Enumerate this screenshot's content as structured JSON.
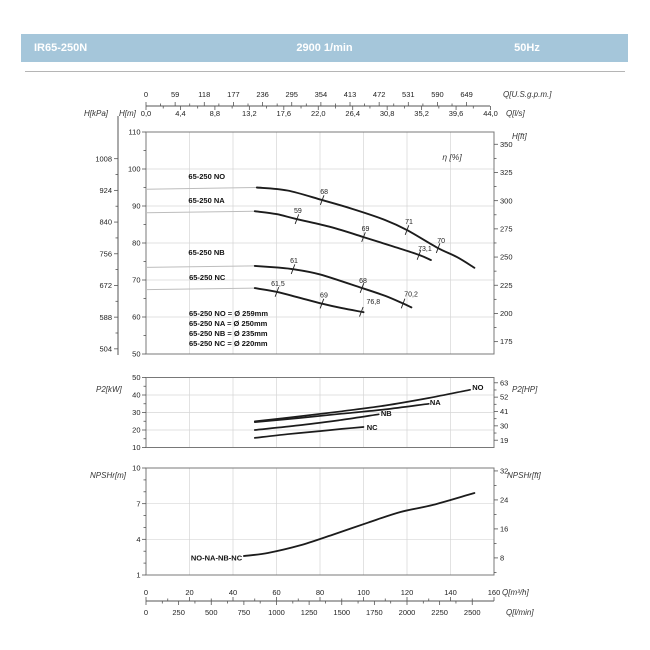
{
  "header": {
    "model": "IR65-250N",
    "speed": "2900 1/min",
    "frequency": "50Hz",
    "bar_color": "#a5c6da"
  },
  "chart_data": {
    "type": "line",
    "colors": {
      "curve": "#1c1c1c",
      "lead": "#bdbdbd",
      "grid": "#d6d6d6",
      "frame": "#787878",
      "axis": "#555555",
      "tick_text": "#222222",
      "unit_text": "#333333"
    },
    "flow_axes": {
      "gpm": {
        "label": "Q[U.S.g.p.m.]",
        "ticks": [
          0,
          59,
          118,
          177,
          236,
          295,
          354,
          413,
          472,
          531,
          590,
          649
        ]
      },
      "ls": {
        "label": "Q[l/s]",
        "tick_labels": [
          "0,0",
          "4,4",
          "8,8",
          "13,2",
          "17,6",
          "22,0",
          "26,4",
          "30,8",
          "35,2",
          "39,6",
          "44,0"
        ],
        "tick_values": [
          0,
          4.4,
          8.8,
          13.2,
          17.6,
          22,
          26.4,
          30.8,
          35.2,
          39.6,
          44
        ]
      },
      "m3h": {
        "label": "Q[m³/h]",
        "ticks": [
          0,
          20,
          40,
          60,
          80,
          100,
          120,
          140,
          160
        ],
        "range": [
          0,
          160
        ]
      },
      "lmin": {
        "label": "Q[l/min]",
        "ticks": [
          0,
          250,
          500,
          750,
          1000,
          1250,
          1500,
          1750,
          2000,
          2250,
          2500
        ]
      }
    },
    "head_chart": {
      "eff_unit_label": "η [%]",
      "y_m": {
        "label": "H[m]",
        "ticks": [
          110,
          100,
          90,
          80,
          70,
          60,
          50
        ],
        "range": [
          50,
          110
        ]
      },
      "y_kpa": {
        "label": "H[kPa]",
        "ticks": [
          1008,
          924,
          840,
          756,
          672,
          588,
          504
        ]
      },
      "y_ft": {
        "label": "H[ft]",
        "ticks": [
          350,
          325,
          300,
          275,
          250,
          225,
          200,
          175
        ]
      },
      "gridlines_h": [
        60,
        70,
        80,
        90,
        100
      ],
      "curves": [
        {
          "name": "65-250 NO",
          "label_pos": [
            19.5,
            97.3
          ],
          "lead": [
            [
              0,
              94.5
            ],
            [
              51,
              95
            ]
          ],
          "points": [
            [
              51,
              95
            ],
            [
              65,
              94.2
            ],
            [
              81,
              91.6
            ],
            [
              95,
              89.2
            ],
            [
              110,
              86.2
            ],
            [
              120,
              83.5
            ],
            [
              134,
              78.7
            ],
            [
              143,
              76.2
            ],
            [
              151,
              73.3
            ]
          ],
          "eff_marks": [
            {
              "q": 81,
              "label": "68",
              "o": [
                2,
                -6
              ]
            },
            {
              "q": 120,
              "label": "71",
              "o": [
                2,
                -6
              ]
            },
            {
              "q": 134.3,
              "label": "70",
              "o": [
                3,
                -5
              ]
            }
          ]
        },
        {
          "name": "65-250 NA",
          "label_pos": [
            19.5,
            90.8
          ],
          "lead": [
            [
              0,
              88.2
            ],
            [
              50,
              88.6
            ]
          ],
          "points": [
            [
              50,
              88.6
            ],
            [
              60,
              87.8
            ],
            [
              69,
              86.5
            ],
            [
              85,
              84.3
            ],
            [
              100,
              81.6
            ],
            [
              113,
              79.2
            ],
            [
              125,
              76.9
            ],
            [
              131,
              75.4
            ]
          ],
          "eff_marks": [
            {
              "q": 69.4,
              "label": "59",
              "o": [
                1,
                -6
              ]
            },
            {
              "q": 100,
              "label": "69",
              "o": [
                2,
                -6
              ]
            },
            {
              "q": 125.5,
              "label": "73,1",
              "o": [
                6,
                -4
              ]
            }
          ]
        },
        {
          "name": "65-250 NB",
          "label_pos": [
            19.5,
            76.8
          ],
          "lead": [
            [
              0,
              73.4
            ],
            [
              50,
              73.8
            ]
          ],
          "points": [
            [
              50,
              73.8
            ],
            [
              60,
              73.4
            ],
            [
              68,
              72.9
            ],
            [
              80,
              71.5
            ],
            [
              99,
              67.9
            ],
            [
              110,
              65.7
            ],
            [
              118,
              63.7
            ],
            [
              122,
              62.6
            ]
          ],
          "eff_marks": [
            {
              "q": 67.6,
              "label": "61",
              "o": [
                1,
                -6
              ]
            },
            {
              "q": 99.3,
              "label": "68",
              "o": [
                1,
                -5
              ]
            },
            {
              "q": 118.2,
              "label": "70,2",
              "o": [
                8,
                -7
              ]
            }
          ]
        },
        {
          "name": "65-250 NC",
          "label_pos": [
            19.8,
            70.0
          ],
          "lead": [
            [
              0,
              67.4
            ],
            [
              50,
              67.8
            ]
          ],
          "points": [
            [
              50,
              67.8
            ],
            [
              60,
              66.8
            ],
            [
              70,
              65.3
            ],
            [
              81,
              63.6
            ],
            [
              90,
              62.4
            ],
            [
              100,
              61.3
            ]
          ],
          "eff_marks": [
            {
              "q": 60.2,
              "label": "61,5",
              "o": [
                1,
                -6
              ]
            },
            {
              "q": 80.9,
              "label": "69",
              "o": [
                2,
                -6
              ]
            },
            {
              "q": 99,
              "label": "76,8",
              "o": [
                12,
                -8
              ]
            }
          ]
        }
      ],
      "legend": [
        "65-250 NO = Ø 259mm",
        "65-250 NA = Ø 250mm",
        "65-250 NB = Ø 235mm",
        "65-250 NC = Ø 220mm"
      ]
    },
    "power_chart": {
      "y_kw": {
        "label": "P2[kW]",
        "ticks": [
          50,
          40,
          30,
          20,
          10
        ],
        "range": [
          10,
          50
        ]
      },
      "y_hp": {
        "label": "P2[HP]",
        "ticks": [
          63,
          52,
          41,
          30,
          19
        ]
      },
      "gridlines_h": [
        20,
        30,
        40
      ],
      "curves": [
        {
          "name": "NO",
          "points": [
            [
              50,
              25
            ],
            [
              70,
              27.7
            ],
            [
              90,
              30.7
            ],
            [
              110,
              34
            ],
            [
              130,
              38.3
            ],
            [
              149,
              43
            ]
          ],
          "label_pos": [
            150,
            42.9
          ]
        },
        {
          "name": "NA",
          "points": [
            [
              50,
              24.5
            ],
            [
              70,
              26.8
            ],
            [
              90,
              29.3
            ],
            [
              110,
              31.8
            ],
            [
              130,
              35
            ]
          ],
          "label_pos": [
            130.5,
            34.3
          ]
        },
        {
          "name": "NB",
          "points": [
            [
              50,
              20
            ],
            [
              70,
              22.6
            ],
            [
              90,
              25.8
            ],
            [
              107,
              29
            ]
          ],
          "label_pos": [
            108,
            28
          ]
        },
        {
          "name": "NC",
          "points": [
            [
              50,
              15.5
            ],
            [
              65,
              17.6
            ],
            [
              80,
              19.4
            ],
            [
              90,
              20.6
            ],
            [
              100,
              21.7
            ]
          ],
          "label_pos": [
            101.5,
            20
          ]
        }
      ]
    },
    "npsh_chart": {
      "y_m": {
        "label": "NPSHr[m]",
        "ticks": [
          10,
          7,
          4,
          1
        ],
        "range": [
          1,
          10
        ]
      },
      "y_ft": {
        "label": "NPSHr[ft]",
        "ticks": [
          32,
          24,
          16,
          8
        ]
      },
      "gridlines_h": [
        4,
        7
      ],
      "curves": [
        {
          "name": "NO-NA-NB-NC",
          "points": [
            [
              45,
              2.6
            ],
            [
              56,
              2.85
            ],
            [
              71,
              3.5
            ],
            [
              86,
              4.4
            ],
            [
              102,
              5.4
            ],
            [
              117,
              6.3
            ],
            [
              132,
              6.9
            ],
            [
              151,
              7.9
            ]
          ],
          "label_pos": [
            44.2,
            2.43
          ]
        }
      ]
    }
  }
}
